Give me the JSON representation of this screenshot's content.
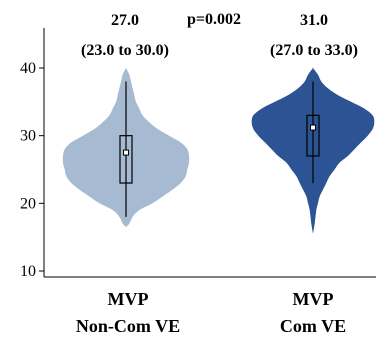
{
  "chart_data": {
    "type": "violin",
    "title": "",
    "xlabel": "",
    "ylabel": "",
    "ylim": [
      10,
      41
    ],
    "y_ticks": [
      10,
      20,
      30,
      40
    ],
    "grid": false,
    "categories": [
      {
        "line1": "MVP",
        "line2": "Non-Com VE"
      },
      {
        "line1": "MVP",
        "line2": "Com VE"
      }
    ],
    "series": [
      {
        "median": 27.0,
        "q1": 23.0,
        "q3": 30.0,
        "mean": 27.5,
        "whisker_low": 18.0,
        "whisker_high": 38.0,
        "min": 16.5,
        "max": 40.0,
        "color": "#a6bbd1",
        "median_label": "27.0",
        "iqr_label": "(23.0 to 30.0)",
        "density": [
          [
            16.5,
            0
          ],
          [
            17,
            2
          ],
          [
            18,
            4
          ],
          [
            19,
            8
          ],
          [
            20,
            16
          ],
          [
            21,
            22
          ],
          [
            22,
            28
          ],
          [
            23,
            33
          ],
          [
            24,
            36
          ],
          [
            25,
            37
          ],
          [
            26,
            38
          ],
          [
            27,
            38
          ],
          [
            28,
            37
          ],
          [
            29,
            33
          ],
          [
            30,
            26
          ],
          [
            31,
            19
          ],
          [
            32,
            14
          ],
          [
            33,
            10
          ],
          [
            34,
            8
          ],
          [
            35,
            6
          ],
          [
            36,
            5
          ],
          [
            37,
            4
          ],
          [
            38,
            3
          ],
          [
            39,
            2
          ],
          [
            40,
            0
          ]
        ]
      },
      {
        "median": 31.0,
        "q1": 27.0,
        "q3": 33.0,
        "mean": 31.2,
        "whisker_low": 23.0,
        "whisker_high": 38.0,
        "min": 15.5,
        "max": 40.0,
        "color": "#2c5494",
        "median_label": "31.0",
        "iqr_label": "(27.0 to 33.0)",
        "density": [
          [
            15.5,
            0
          ],
          [
            17,
            1
          ],
          [
            19,
            2
          ],
          [
            20,
            3
          ],
          [
            21,
            4
          ],
          [
            22,
            6
          ],
          [
            23,
            8
          ],
          [
            24,
            10
          ],
          [
            25,
            13
          ],
          [
            26,
            16
          ],
          [
            27,
            21
          ],
          [
            28,
            25
          ],
          [
            29,
            29
          ],
          [
            30,
            33
          ],
          [
            31,
            36
          ],
          [
            32,
            37
          ],
          [
            33,
            36
          ],
          [
            34,
            31
          ],
          [
            35,
            23
          ],
          [
            36,
            15
          ],
          [
            37,
            9
          ],
          [
            38,
            5
          ],
          [
            39,
            3
          ],
          [
            40,
            0
          ]
        ]
      }
    ],
    "p_value_label": "p=0.002"
  }
}
